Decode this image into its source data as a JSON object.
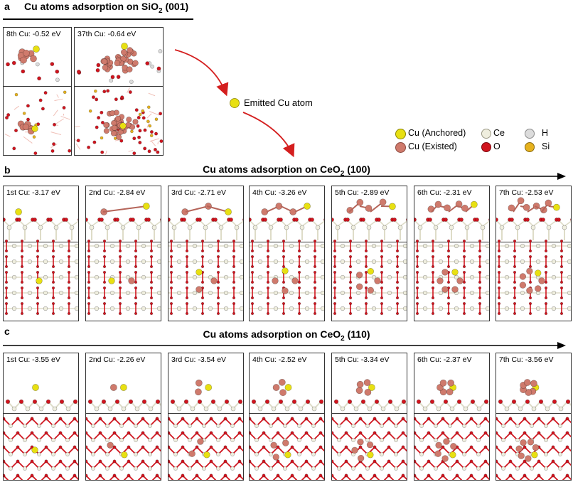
{
  "panel_a": {
    "letter": "a",
    "title_main": "Cu atoms adsorption on SiO",
    "title_sub": "2",
    "title_tail": " (001)",
    "frames": [
      {
        "label": "8th Cu: -0.52 eV"
      },
      {
        "label": "37th Cu: -0.64 eV"
      }
    ]
  },
  "emitted": {
    "label": "Emitted Cu atom"
  },
  "legend": {
    "cu_anchored": "Cu (Anchored)",
    "cu_existed": "Cu (Existed)",
    "ce": "Ce",
    "o": "O",
    "h": "H",
    "si": "Si"
  },
  "panel_b": {
    "letter": "b",
    "title_main": "Cu atoms adsorption on CeO",
    "title_sub": "2",
    "title_tail": " (100)",
    "frames": [
      {
        "label": "1st Cu: -3.17 eV"
      },
      {
        "label": "2nd Cu: -2.84 eV"
      },
      {
        "label": "3rd Cu: -2.71 eV"
      },
      {
        "label": "4th Cu: -3.26 eV"
      },
      {
        "label": "5th Cu: -2.89 eV"
      },
      {
        "label": "6th Cu: -2.31 eV"
      },
      {
        "label": "7th Cu: -2.53 eV"
      }
    ]
  },
  "panel_c": {
    "letter": "c",
    "title_main": "Cu atoms adsorption on CeO",
    "title_sub": "2",
    "title_tail": " (110)",
    "frames": [
      {
        "label": "1st Cu: -3.55 eV"
      },
      {
        "label": "2nd Cu: -2.26 eV"
      },
      {
        "label": "3rd Cu: -3.54 eV"
      },
      {
        "label": "4th Cu: -2.52 eV"
      },
      {
        "label": "5th Cu: -3.34 eV"
      },
      {
        "label": "6th Cu: -2.37 eV"
      },
      {
        "label": "7th Cu: -3.56 eV"
      }
    ]
  },
  "colors": {
    "cu_anchored": "#e8e012",
    "cu_existed": "#cf7a6c",
    "ce": "#efeede",
    "o": "#d0141e",
    "h": "#dcdcdc",
    "si": "#e6b21e",
    "arrow": "#d41e1e",
    "bond_ce": "#dedcc8"
  }
}
